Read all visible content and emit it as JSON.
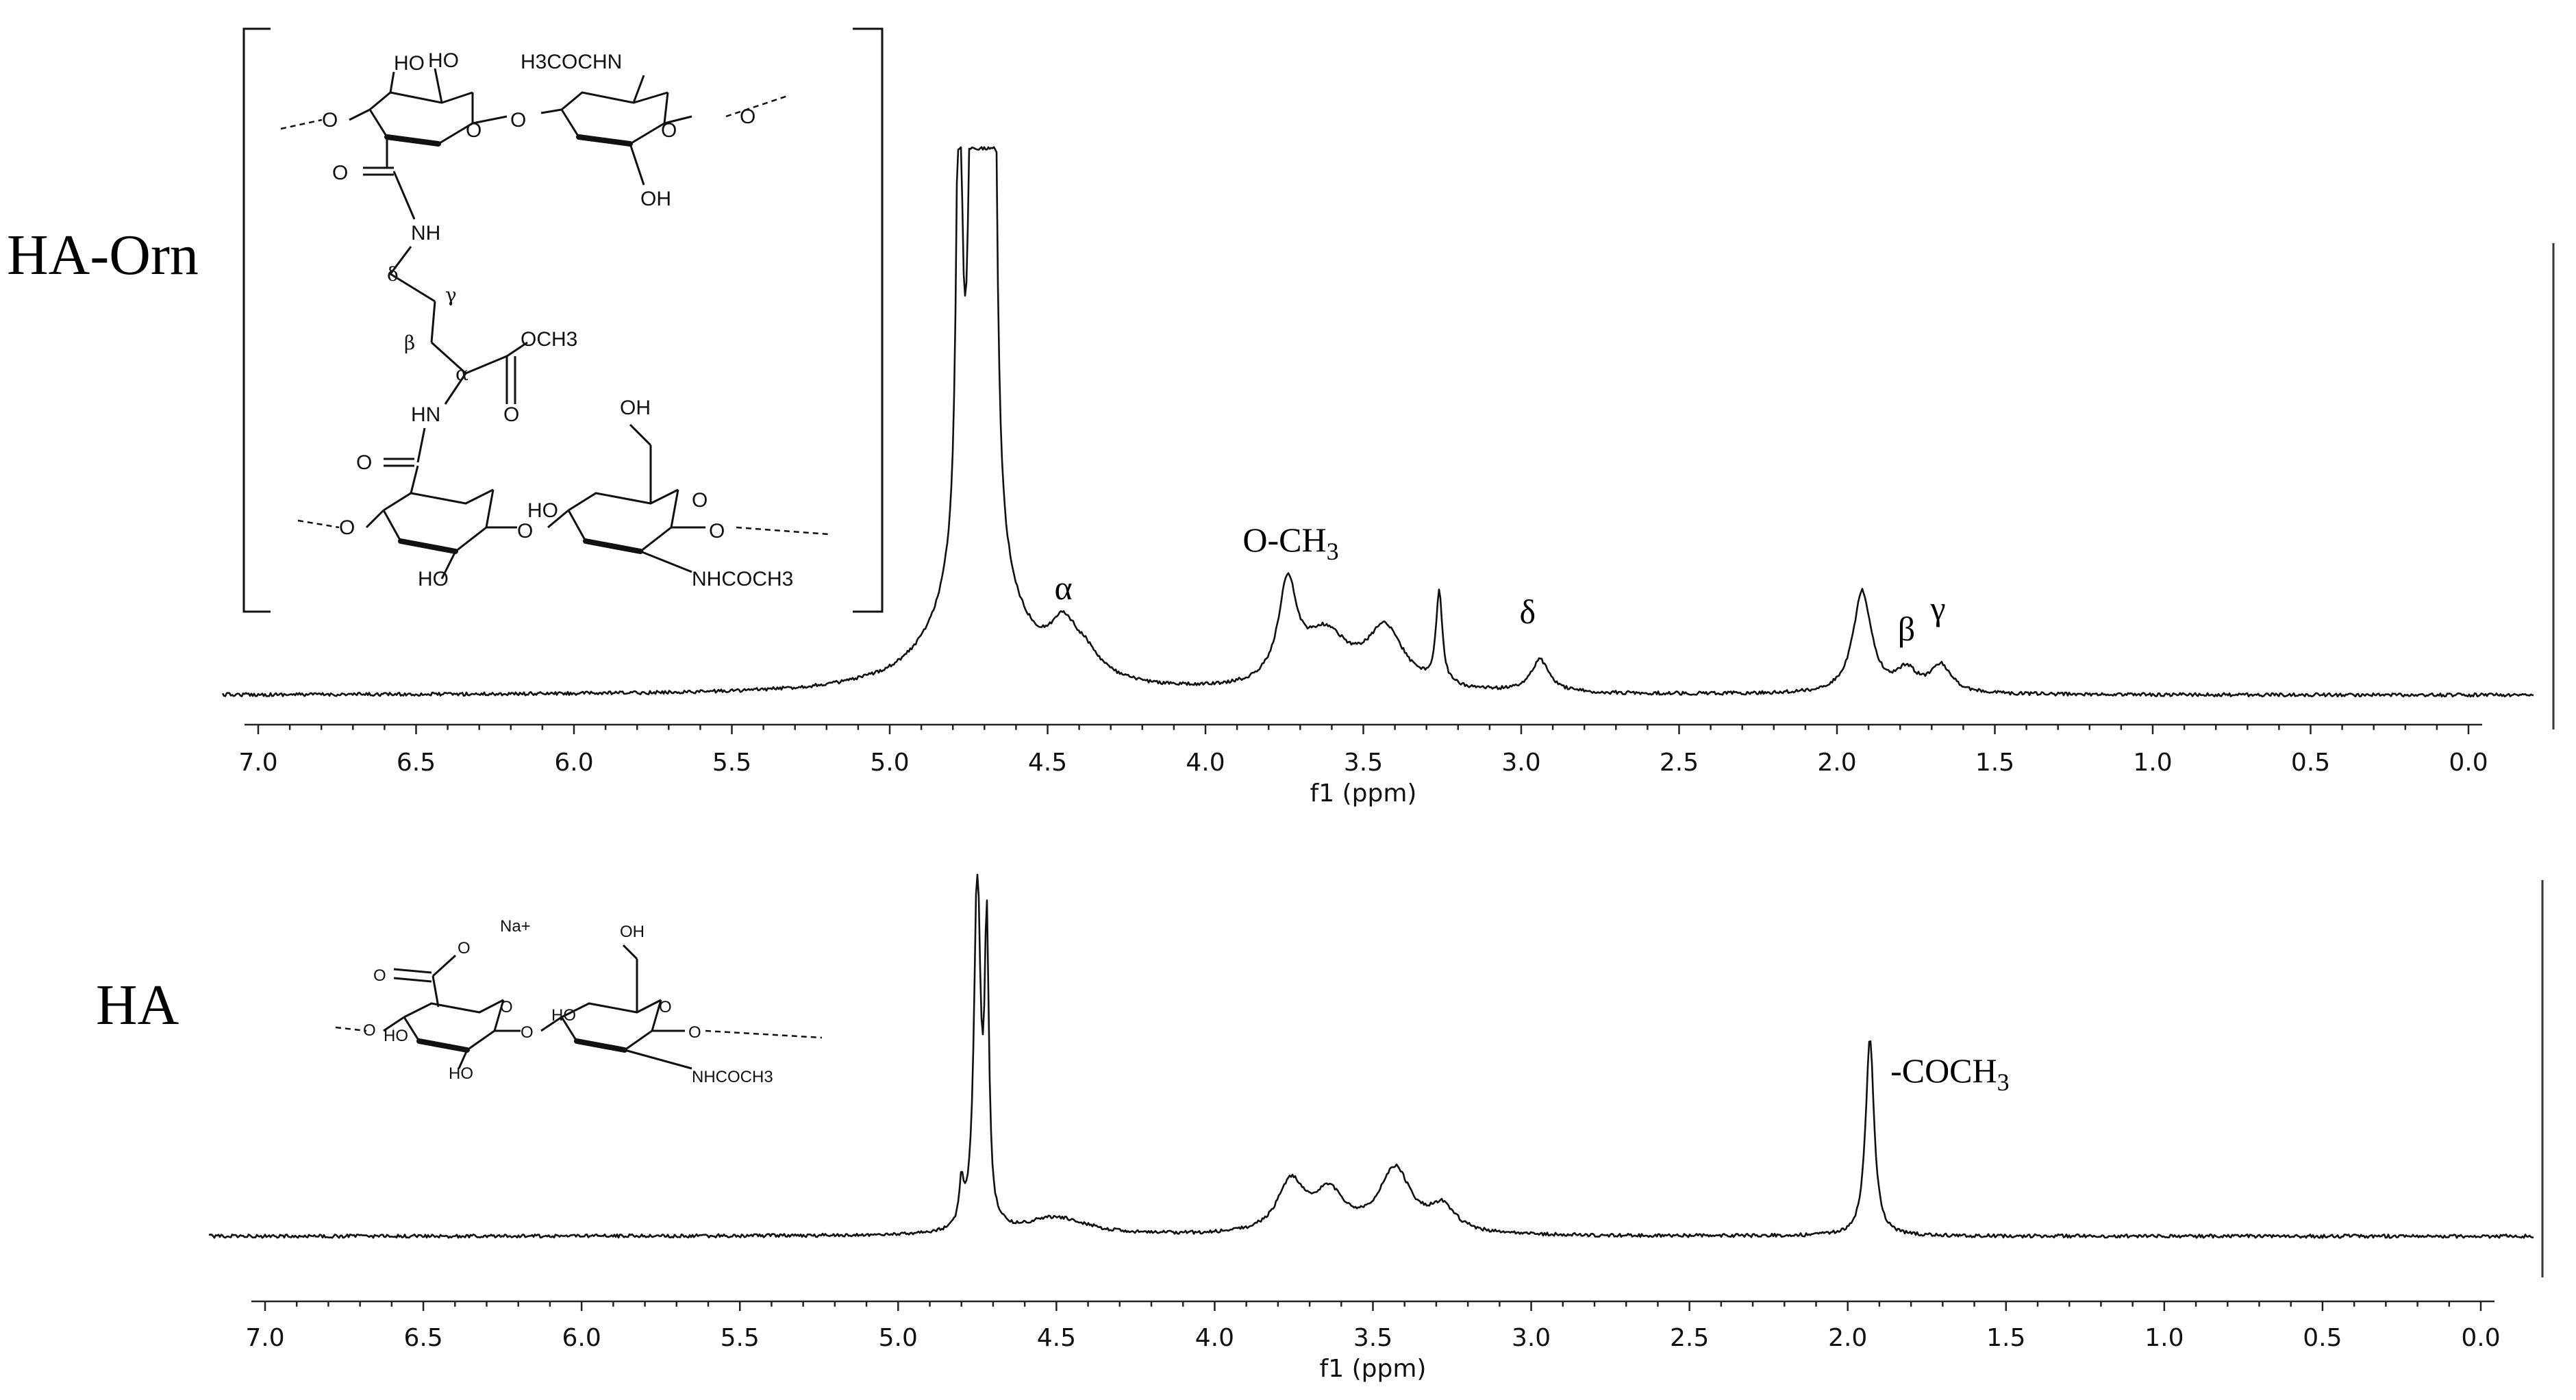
{
  "chart_data": [
    {
      "type": "line",
      "sample_label": "HA-Orn",
      "xlabel": "f1 (ppm)",
      "xlim": [
        7.0,
        0.0
      ],
      "x_reversed": true,
      "ticks": [
        "7.0",
        "6.5",
        "6.0",
        "5.5",
        "5.0",
        "4.5",
        "4.0",
        "3.5",
        "3.0",
        "2.5",
        "2.0",
        "1.5",
        "1.0",
        "0.5",
        "0.0"
      ],
      "peaks": [
        {
          "ppm": 4.78,
          "height": 1.0,
          "width": 0.01
        },
        {
          "ppm": 4.74,
          "height": 1.0,
          "width": 0.01
        },
        {
          "ppm": 4.71,
          "height": 1.0,
          "width": 0.01
        },
        {
          "ppm": 4.69,
          "height": 1.0,
          "width": 0.01
        },
        {
          "ppm": 4.67,
          "height": 1.0,
          "width": 0.01
        },
        {
          "ppm": 4.72,
          "height": 0.3,
          "width": 0.12
        },
        {
          "ppm": 4.45,
          "height": 0.08,
          "width": 0.05
        },
        {
          "ppm": 4.38,
          "height": 0.04,
          "width": 0.06
        },
        {
          "ppm": 3.74,
          "height": 0.18,
          "width": 0.035
        },
        {
          "ppm": 3.62,
          "height": 0.1,
          "width": 0.09
        },
        {
          "ppm": 3.43,
          "height": 0.11,
          "width": 0.07
        },
        {
          "ppm": 3.26,
          "height": 0.17,
          "width": 0.012
        },
        {
          "ppm": 2.94,
          "height": 0.06,
          "width": 0.035
        },
        {
          "ppm": 1.92,
          "height": 0.19,
          "width": 0.035
        },
        {
          "ppm": 1.78,
          "height": 0.04,
          "width": 0.04
        },
        {
          "ppm": 1.67,
          "height": 0.05,
          "width": 0.04
        }
      ],
      "annotations": [
        {
          "text": "α",
          "ppm": 4.45
        },
        {
          "text": "O-CH3",
          "ppm": 3.73
        },
        {
          "text": "δ",
          "ppm": 2.98
        },
        {
          "text": "β",
          "ppm": 1.78
        },
        {
          "text": "γ",
          "ppm": 1.68
        }
      ]
    },
    {
      "type": "line",
      "sample_label": "HA",
      "xlabel": "f1 (ppm)",
      "xlim": [
        7.0,
        0.0
      ],
      "x_reversed": true,
      "ticks": [
        "7.0",
        "6.5",
        "6.0",
        "5.5",
        "5.0",
        "4.5",
        "4.0",
        "3.5",
        "3.0",
        "2.5",
        "2.0",
        "1.5",
        "1.0",
        "0.5",
        "0.0"
      ],
      "peaks": [
        {
          "ppm": 4.8,
          "height": 0.12,
          "width": 0.008
        },
        {
          "ppm": 4.75,
          "height": 1.0,
          "width": 0.012
        },
        {
          "ppm": 4.72,
          "height": 0.8,
          "width": 0.008
        },
        {
          "ppm": 4.5,
          "height": 0.05,
          "width": 0.12
        },
        {
          "ppm": 3.76,
          "height": 0.14,
          "width": 0.05
        },
        {
          "ppm": 3.64,
          "height": 0.11,
          "width": 0.06
        },
        {
          "ppm": 3.43,
          "height": 0.18,
          "width": 0.06
        },
        {
          "ppm": 3.28,
          "height": 0.07,
          "width": 0.05
        },
        {
          "ppm": 1.93,
          "height": 0.56,
          "width": 0.016
        }
      ],
      "annotations": [
        {
          "text": "-COCH3",
          "ppm": 1.93
        }
      ]
    }
  ],
  "structures": {
    "ha_orn": {
      "labels": [
        "HO",
        "HO",
        "H3COCHN",
        "O",
        "O",
        "O",
        "O",
        "O",
        "OH",
        "NH",
        "δ",
        "γ",
        "β",
        "α",
        "OCH3",
        "O",
        "HN",
        "O",
        "OH",
        "HO",
        "O",
        "O",
        "O",
        "O",
        "HO",
        "NHCOCH3"
      ]
    },
    "ha": {
      "labels": [
        "O",
        "Na+",
        "O",
        "O",
        "HO",
        "O",
        "O",
        "OH",
        "HO",
        "O",
        "HO",
        "NHCOCH3"
      ]
    }
  }
}
